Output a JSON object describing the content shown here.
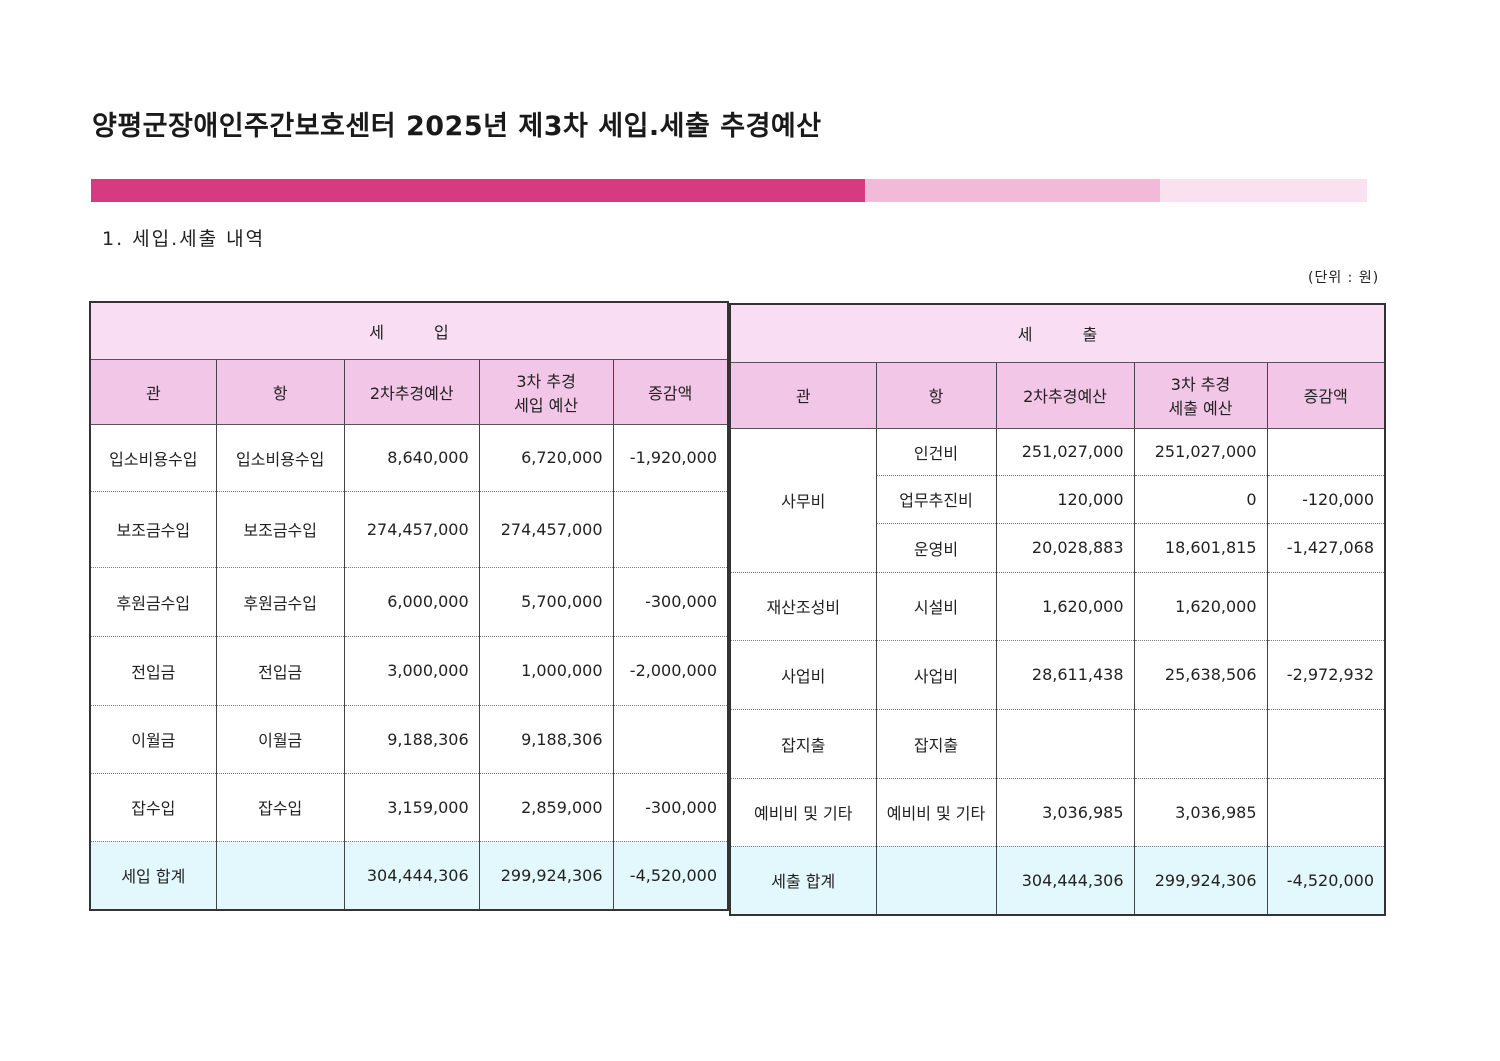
{
  "title": "양평군장애인주간보호센터 2025년 제3차 세입.세출 추경예산",
  "colors": {
    "bar_dark": "#d63a80",
    "bar_mid": "#f2b9d9",
    "bar_light": "#f9e1ef",
    "header": "#f8ddf3",
    "column_header": "#f2c6e7",
    "total_row": "#e3f8fc"
  },
  "section": "1. 세입.세출 내역",
  "unit": "(단위 : 원)",
  "revenue": {
    "heading": "세입",
    "columns": [
      "관",
      "항",
      "2차추경예산",
      "3차 추경",
      "세입 예산",
      "증감액"
    ],
    "rows": [
      {
        "gwan": "입소비용수입",
        "hang": "입소비용수입",
        "prev": "8,640,000",
        "curr": "6,720,000",
        "diff": "-1,920,000"
      },
      {
        "gwan": "보조금수입",
        "hang": "보조금수입",
        "prev": "274,457,000",
        "curr": "274,457,000",
        "diff": ""
      },
      {
        "gwan": "후원금수입",
        "hang": "후원금수입",
        "prev": "6,000,000",
        "curr": "5,700,000",
        "diff": "-300,000"
      },
      {
        "gwan": "전입금",
        "hang": "전입금",
        "prev": "3,000,000",
        "curr": "1,000,000",
        "diff": "-2,000,000"
      },
      {
        "gwan": "이월금",
        "hang": "이월금",
        "prev": "9,188,306",
        "curr": "9,188,306",
        "diff": ""
      },
      {
        "gwan": "잡수입",
        "hang": "잡수입",
        "prev": "3,159,000",
        "curr": "2,859,000",
        "diff": "-300,000"
      }
    ],
    "total": {
      "label": "세입 합계",
      "prev": "304,444,306",
      "curr": "299,924,306",
      "diff": "-4,520,000"
    }
  },
  "expenditure": {
    "heading": "세출",
    "columns": [
      "관",
      "항",
      "2차추경예산",
      "3차 추경",
      "세출 예산",
      "증감액"
    ],
    "rows": [
      {
        "gwan": "사무비",
        "hang": "인건비",
        "prev": "251,027,000",
        "curr": "251,027,000",
        "diff": ""
      },
      {
        "gwan": "",
        "hang": "업무추진비",
        "prev": "120,000",
        "curr": "0",
        "diff": "-120,000"
      },
      {
        "gwan": "",
        "hang": "운영비",
        "prev": "20,028,883",
        "curr": "18,601,815",
        "diff": "-1,427,068"
      },
      {
        "gwan": "재산조성비",
        "hang": "시설비",
        "prev": "1,620,000",
        "curr": "1,620,000",
        "diff": ""
      },
      {
        "gwan": "사업비",
        "hang": "사업비",
        "prev": "28,611,438",
        "curr": "25,638,506",
        "diff": "-2,972,932"
      },
      {
        "gwan": "잡지출",
        "hang": "잡지출",
        "prev": "",
        "curr": "",
        "diff": ""
      },
      {
        "gwan": "예비비 및 기타",
        "hang": "예비비 및 기타",
        "prev": "3,036,985",
        "curr": "3,036,985",
        "diff": ""
      }
    ],
    "total": {
      "label": "세출 합계",
      "prev": "304,444,306",
      "curr": "299,924,306",
      "diff": "-4,520,000"
    }
  }
}
